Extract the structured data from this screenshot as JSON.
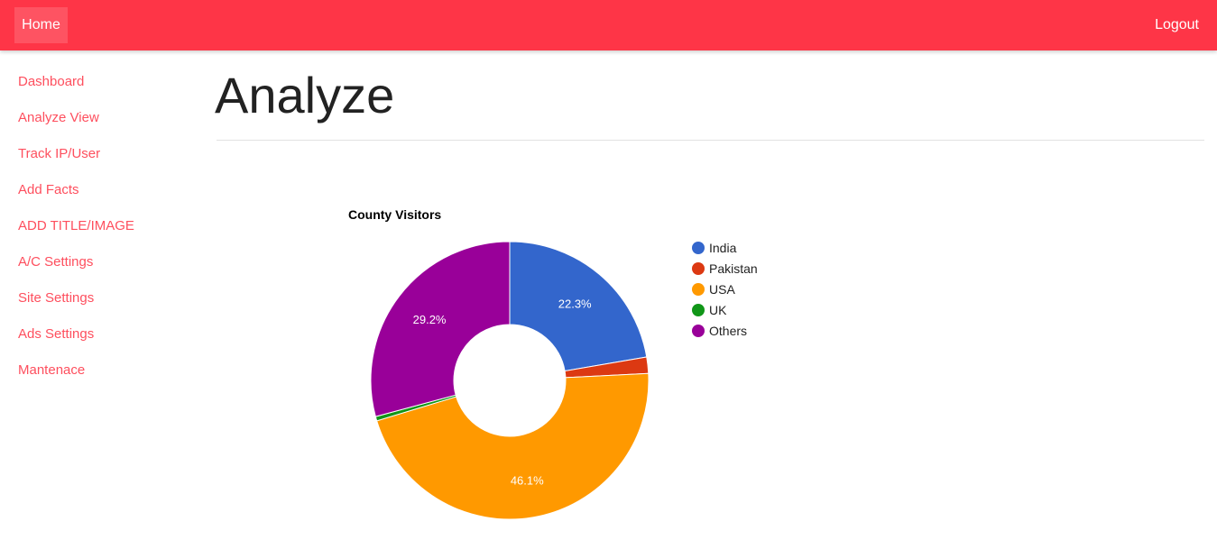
{
  "nav": {
    "home_label": "Home",
    "logout_label": "Logout"
  },
  "sidebar": {
    "items": [
      {
        "label": "Dashboard"
      },
      {
        "label": "Analyze View"
      },
      {
        "label": "Track IP/User"
      },
      {
        "label": "Add Facts"
      },
      {
        "label": "ADD TITLE/IMAGE"
      },
      {
        "label": "A/C Settings"
      },
      {
        "label": "Site Settings"
      },
      {
        "label": "Ads Settings"
      },
      {
        "label": "Mantenace"
      }
    ]
  },
  "main": {
    "title": "Analyze"
  },
  "colors": {
    "navbar": "#fe3547",
    "sidebar_link": "#fe4f5e"
  },
  "chart_data": {
    "type": "pie",
    "donut": true,
    "title": "County Visitors",
    "legend_position": "right",
    "slices": [
      {
        "label": "India",
        "value": 22.3,
        "color": "#3366cc",
        "show_label": true
      },
      {
        "label": "Pakistan",
        "value": 1.9,
        "color": "#dc3912",
        "show_label": false
      },
      {
        "label": "USA",
        "value": 46.1,
        "color": "#ff9900",
        "show_label": true
      },
      {
        "label": "UK",
        "value": 0.5,
        "color": "#109618",
        "show_label": false
      },
      {
        "label": "Others",
        "value": 29.2,
        "color": "#990099",
        "show_label": true
      }
    ]
  }
}
